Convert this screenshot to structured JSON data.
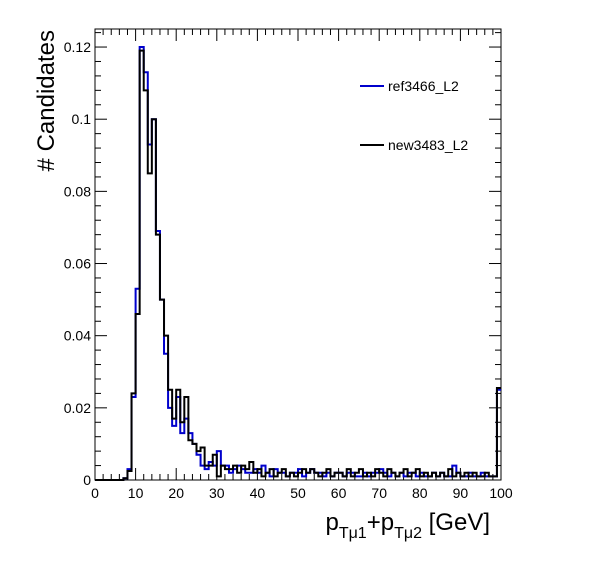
{
  "chart_data": {
    "type": "histogram-step",
    "ylabel": "# Candidates",
    "xlabel_base": "p",
    "xlabel_sub1": "Tμ1",
    "xlabel_plus": "+p",
    "xlabel_sub2": "Tμ2",
    "xlabel_unit": " [GeV]",
    "xlim": [
      0,
      100
    ],
    "ylim": [
      0,
      0.125
    ],
    "xticks": [
      0,
      10,
      20,
      30,
      40,
      50,
      60,
      70,
      80,
      90,
      100
    ],
    "xtick_labels": [
      "0",
      "10",
      "20",
      "30",
      "40",
      "50",
      "60",
      "70",
      "80",
      "90",
      "100"
    ],
    "yticks": [
      0,
      0.02,
      0.04,
      0.06,
      0.08,
      0.1,
      0.12
    ],
    "ytick_labels": [
      "0",
      "0.02",
      "0.04",
      "0.06",
      "0.08",
      "0.1",
      "0.12"
    ],
    "legend_position": "top-right",
    "bin_edges_start": 0,
    "bin_width": 1,
    "series": [
      {
        "name": "ref3466_L2",
        "color": "#0000cc",
        "values": [
          0,
          0,
          0,
          0,
          0,
          0,
          0,
          0.0005,
          0.003,
          0.023,
          0.053,
          0.12,
          0.113,
          0.093,
          0.1,
          0.069,
          0.05,
          0.035,
          0.02,
          0.015,
          0.023,
          0.013,
          0.017,
          0.013,
          0.01,
          0.007,
          0.004,
          0.003,
          0.005,
          0.004,
          0.008,
          0.004,
          0.004,
          0.002,
          0.003,
          0.004,
          0.003,
          0.002,
          0.002,
          0.003,
          0.002,
          0.004,
          0.002,
          0.001,
          0.003,
          0.002,
          0.002,
          0.001,
          0.002,
          0.002,
          0.003,
          0.001,
          0.002,
          0.003,
          0.002,
          0.002,
          0.001,
          0.002,
          0.001,
          0.002,
          0.002,
          0.001,
          0.002,
          0.002,
          0.001,
          0.001,
          0.002,
          0.001,
          0.002,
          0.002,
          0.003,
          0.002,
          0.001,
          0.002,
          0.001,
          0.002,
          0.001,
          0.002,
          0.002,
          0.001,
          0.002,
          0.001,
          0.001,
          0.002,
          0.001,
          0.002,
          0.001,
          0.001,
          0.004,
          0.002,
          0.001,
          0.001,
          0.002,
          0.001,
          0.001,
          0.002,
          0.001,
          0.001,
          0.001,
          0.025
        ]
      },
      {
        "name": "new3483_L2",
        "color": "#000000",
        "values": [
          0,
          0,
          0,
          0,
          0,
          0,
          0,
          0.0005,
          0.0025,
          0.024,
          0.046,
          0.119,
          0.108,
          0.085,
          0.1,
          0.068,
          0.05,
          0.04,
          0.025,
          0.017,
          0.025,
          0.016,
          0.023,
          0.011,
          0.01,
          0.008,
          0.009,
          0.004,
          0.004,
          0.007,
          0.001,
          0.004,
          0.003,
          0.003,
          0.004,
          0.002,
          0.004,
          0.003,
          0.005,
          0.002,
          0.003,
          0.001,
          0.002,
          0.003,
          0.001,
          0.002,
          0.003,
          0.001,
          0.002,
          0.001,
          0.002,
          0.003,
          0.002,
          0.003,
          0.002,
          0.001,
          0.002,
          0.003,
          0.001,
          0.002,
          0.002,
          0.001,
          0.003,
          0.001,
          0.002,
          0.003,
          0.001,
          0.002,
          0.001,
          0.003,
          0.002,
          0.001,
          0.003,
          0.002,
          0.001,
          0.002,
          0.003,
          0.001,
          0.002,
          0.003,
          0.001,
          0.002,
          0.001,
          0.002,
          0.001,
          0.002,
          0.001,
          0.003,
          0.001,
          0.002,
          0.001,
          0.002,
          0.001,
          0.002,
          0.001,
          0.001,
          0.002,
          0.001,
          0.001,
          0.0255
        ]
      }
    ]
  }
}
